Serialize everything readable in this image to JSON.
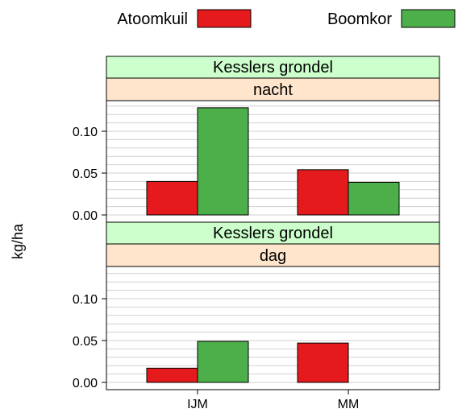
{
  "chart_data": {
    "type": "bar",
    "ylabel": "kg/ha",
    "ylim": [
      0,
      0.13
    ],
    "yticks": [
      "0.00",
      "0.05",
      "0.10"
    ],
    "categories": [
      "IJM",
      "MM"
    ],
    "legend": [
      {
        "name": "Atoomkuil",
        "color": "#e41a1c"
      },
      {
        "name": "Boomkor",
        "color": "#4daf4a"
      }
    ],
    "legend_position": "top",
    "grid": "horizontal",
    "panels": [
      {
        "strip_top": "Kesslers grondel",
        "strip_bottom": "nacht",
        "series": [
          {
            "name": "Atoomkuil",
            "values": [
              0.04,
              0.054
            ]
          },
          {
            "name": "Boomkor",
            "values": [
              0.128,
              0.039
            ]
          }
        ]
      },
      {
        "strip_top": "Kesslers grondel",
        "strip_bottom": "dag",
        "series": [
          {
            "name": "Atoomkuil",
            "values": [
              0.017,
              0.047
            ]
          },
          {
            "name": "Boomkor",
            "values": [
              0.049,
              0
            ]
          }
        ]
      }
    ]
  },
  "colors": {
    "strip_top": "#ccffcc",
    "strip_bottom": "#ffe5cc",
    "grid": "#d0d0d0"
  }
}
